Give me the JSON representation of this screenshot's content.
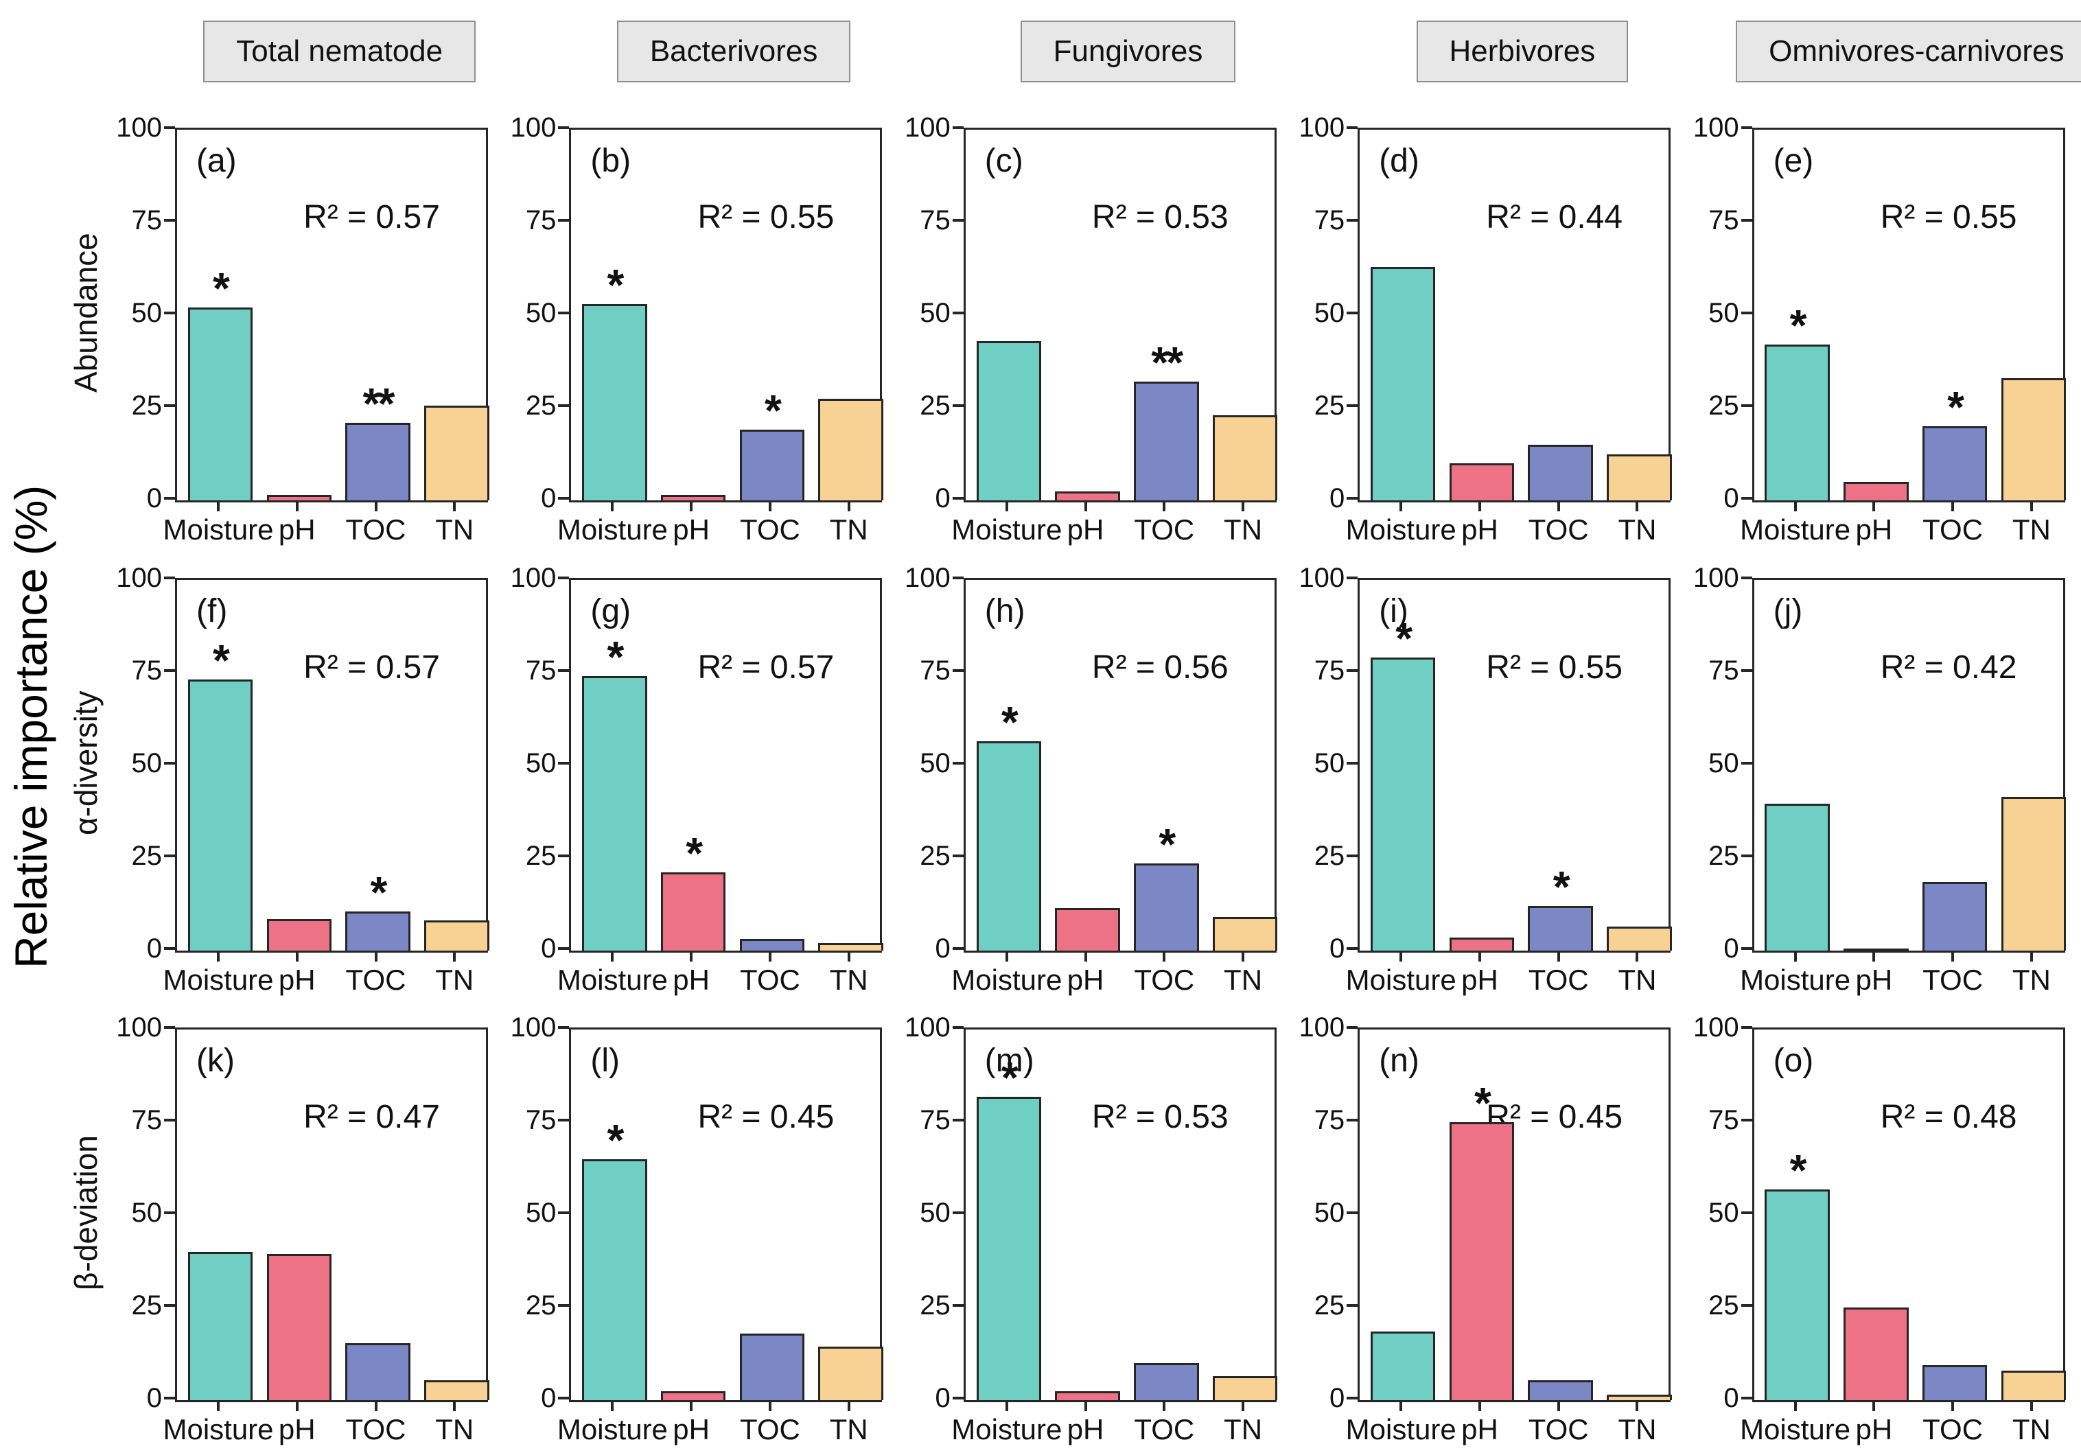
{
  "figure": {
    "y_axis_label": "Relative importance (%)",
    "column_headers": [
      "Total nematode",
      "Bacterivores",
      "Fungivores",
      "Herbivores",
      "Omnivores-carnivores"
    ],
    "row_labels": [
      "Abundance",
      "α-diversity",
      "β-deviation"
    ],
    "categories": [
      "Moisture",
      "pH",
      "TOC",
      "TN"
    ],
    "y_ticks": [
      0,
      25,
      50,
      75,
      100
    ],
    "ylim": [
      0,
      100
    ],
    "colors": {
      "Moisture": "#6FCFC3",
      "pH": "#EE7286",
      "TOC": "#7C87C6",
      "TN": "#F8D295",
      "bar_border": "#262626",
      "header_bg": "#E7E7E7",
      "header_border": "#909090"
    }
  },
  "chart_data": [
    {
      "type": "bar",
      "panel": "(a)",
      "group": "Total nematode",
      "metric": "Abundance",
      "r2_label": "R² = 0.57",
      "categories": [
        "Moisture",
        "pH",
        "TOC",
        "TN"
      ],
      "values": [
        52,
        1.5,
        21,
        25.5
      ],
      "significance": [
        "*",
        "",
        "**",
        ""
      ]
    },
    {
      "type": "bar",
      "panel": "(b)",
      "group": "Bacterivores",
      "metric": "Abundance",
      "r2_label": "R² = 0.55",
      "categories": [
        "Moisture",
        "pH",
        "TOC",
        "TN"
      ],
      "values": [
        53,
        1.5,
        19,
        27.5
      ],
      "significance": [
        "*",
        "",
        "*",
        ""
      ]
    },
    {
      "type": "bar",
      "panel": "(c)",
      "group": "Fungivores",
      "metric": "Abundance",
      "r2_label": "R² = 0.53",
      "categories": [
        "Moisture",
        "pH",
        "TOC",
        "TN"
      ],
      "values": [
        43,
        2.5,
        32,
        23
      ],
      "significance": [
        "",
        "",
        "**",
        ""
      ]
    },
    {
      "type": "bar",
      "panel": "(d)",
      "group": "Herbivores",
      "metric": "Abundance",
      "r2_label": "R² = 0.44",
      "categories": [
        "Moisture",
        "pH",
        "TOC",
        "TN"
      ],
      "values": [
        63,
        10,
        15,
        12.5
      ],
      "significance": [
        "",
        "",
        "",
        ""
      ]
    },
    {
      "type": "bar",
      "panel": "(e)",
      "group": "Omnivores-carnivores",
      "metric": "Abundance",
      "r2_label": "R² = 0.55",
      "categories": [
        "Moisture",
        "pH",
        "TOC",
        "TN"
      ],
      "values": [
        42,
        5,
        20,
        33
      ],
      "significance": [
        "*",
        "",
        "*",
        ""
      ]
    },
    {
      "type": "bar",
      "panel": "(f)",
      "group": "Total nematode",
      "metric": "α-diversity",
      "r2_label": "R² = 0.57",
      "categories": [
        "Moisture",
        "pH",
        "TOC",
        "TN"
      ],
      "values": [
        73,
        8.5,
        10.5,
        8
      ],
      "significance": [
        "*",
        "",
        "*",
        ""
      ]
    },
    {
      "type": "bar",
      "panel": "(g)",
      "group": "Bacterivores",
      "metric": "α-diversity",
      "r2_label": "R² = 0.57",
      "categories": [
        "Moisture",
        "pH",
        "TOC",
        "TN"
      ],
      "values": [
        74,
        21,
        3,
        2
      ],
      "significance": [
        "*",
        "*",
        "",
        ""
      ]
    },
    {
      "type": "bar",
      "panel": "(h)",
      "group": "Fungivores",
      "metric": "α-diversity",
      "r2_label": "R² = 0.56",
      "categories": [
        "Moisture",
        "pH",
        "TOC",
        "TN"
      ],
      "values": [
        56.5,
        11.5,
        23.5,
        9
      ],
      "significance": [
        "*",
        "",
        "*",
        ""
      ]
    },
    {
      "type": "bar",
      "panel": "(i)",
      "group": "Herbivores",
      "metric": "α-diversity",
      "r2_label": "R² = 0.55",
      "categories": [
        "Moisture",
        "pH",
        "TOC",
        "TN"
      ],
      "values": [
        79,
        3.5,
        12,
        6.5
      ],
      "significance": [
        "*",
        "",
        "*",
        ""
      ]
    },
    {
      "type": "bar",
      "panel": "(j)",
      "group": "Omnivores-carnivores",
      "metric": "α-diversity",
      "r2_label": "R² = 0.42",
      "categories": [
        "Moisture",
        "pH",
        "TOC",
        "TN"
      ],
      "values": [
        39.5,
        0.5,
        18.5,
        41.5
      ],
      "significance": [
        "",
        "",
        "",
        ""
      ]
    },
    {
      "type": "bar",
      "panel": "(k)",
      "group": "Total nematode",
      "metric": "β-deviation",
      "r2_label": "R² = 0.47",
      "categories": [
        "Moisture",
        "pH",
        "TOC",
        "TN"
      ],
      "values": [
        40,
        39.5,
        15.5,
        5.5
      ],
      "significance": [
        "",
        "",
        "",
        ""
      ]
    },
    {
      "type": "bar",
      "panel": "(l)",
      "group": "Bacterivores",
      "metric": "β-deviation",
      "r2_label": "R² = 0.45",
      "categories": [
        "Moisture",
        "pH",
        "TOC",
        "TN"
      ],
      "values": [
        65,
        2.5,
        18,
        14.5
      ],
      "significance": [
        "*",
        "",
        "",
        ""
      ]
    },
    {
      "type": "bar",
      "panel": "(m)",
      "group": "Fungivores",
      "metric": "β-deviation",
      "r2_label": "R² = 0.53",
      "categories": [
        "Moisture",
        "pH",
        "TOC",
        "TN"
      ],
      "values": [
        82,
        2.5,
        10,
        6.5
      ],
      "significance": [
        "*",
        "",
        "",
        ""
      ]
    },
    {
      "type": "bar",
      "panel": "(n)",
      "group": "Herbivores",
      "metric": "β-deviation",
      "r2_label": "R² = 0.45",
      "categories": [
        "Moisture",
        "pH",
        "TOC",
        "TN"
      ],
      "values": [
        18.5,
        75,
        5.5,
        1.5
      ],
      "significance": [
        "",
        "*",
        "",
        ""
      ]
    },
    {
      "type": "bar",
      "panel": "(o)",
      "group": "Omnivores-carnivores",
      "metric": "β-deviation",
      "r2_label": "R² = 0.48",
      "categories": [
        "Moisture",
        "pH",
        "TOC",
        "TN"
      ],
      "values": [
        57,
        25,
        9.5,
        8
      ],
      "significance": [
        "*",
        "",
        "",
        ""
      ]
    }
  ]
}
